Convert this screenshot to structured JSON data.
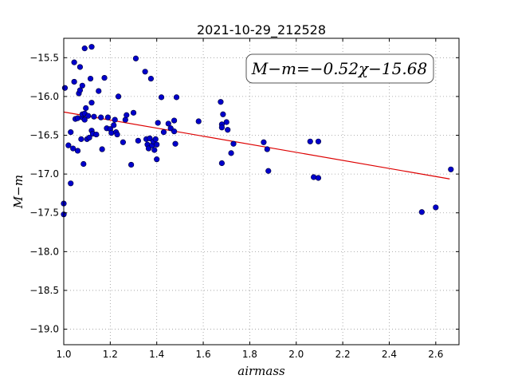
{
  "chart_data": {
    "type": "scatter",
    "title": "2021-10-29_212528",
    "xlabel": "airmass",
    "ylabel": "M−m",
    "xlim": [
      1.0,
      2.7
    ],
    "ylim": [
      -19.2,
      -15.25
    ],
    "x_ticks": [
      1.0,
      1.2,
      1.4,
      1.6,
      1.8,
      2.0,
      2.2,
      2.4,
      2.6
    ],
    "x_tick_labels": [
      "1.0",
      "1.2",
      "1.4",
      "1.6",
      "1.8",
      "2.0",
      "2.2",
      "2.4",
      "2.6"
    ],
    "y_ticks": [
      -15.5,
      -16.0,
      -16.5,
      -17.0,
      -17.5,
      -18.0,
      -18.5,
      -19.0
    ],
    "y_tick_labels": [
      "−15.5",
      "−16.0",
      "−16.5",
      "−17.0",
      "−17.5",
      "−18.0",
      "−18.5",
      "−19.0"
    ],
    "grid": true,
    "annotation": "M−m=−0.52χ−15.68",
    "fit": {
      "slope": -0.52,
      "intercept": -15.68,
      "x_range": [
        1.0,
        2.66
      ]
    },
    "colors": {
      "points": "#0000cc",
      "fit_line": "#dd0000",
      "grid": "#999999"
    },
    "points": [
      [
        1.005,
        -15.89
      ],
      [
        1.0,
        -17.38
      ],
      [
        1.0,
        -17.52
      ],
      [
        1.02,
        -16.63
      ],
      [
        1.03,
        -16.46
      ],
      [
        1.03,
        -17.12
      ],
      [
        1.04,
        -16.67
      ],
      [
        1.045,
        -15.56
      ],
      [
        1.045,
        -15.81
      ],
      [
        1.05,
        -16.29
      ],
      [
        1.06,
        -16.28
      ],
      [
        1.06,
        -16.7
      ],
      [
        1.065,
        -15.96
      ],
      [
        1.07,
        -15.62
      ],
      [
        1.07,
        -15.92
      ],
      [
        1.075,
        -16.55
      ],
      [
        1.08,
        -16.27
      ],
      [
        1.08,
        -16.23
      ],
      [
        1.08,
        -15.86
      ],
      [
        1.085,
        -16.87
      ],
      [
        1.09,
        -16.3
      ],
      [
        1.09,
        -15.38
      ],
      [
        1.09,
        -16.22
      ],
      [
        1.095,
        -16.15
      ],
      [
        1.1,
        -16.55
      ],
      [
        1.105,
        -16.25
      ],
      [
        1.11,
        -16.53
      ],
      [
        1.115,
        -15.77
      ],
      [
        1.12,
        -15.36
      ],
      [
        1.12,
        -16.08
      ],
      [
        1.12,
        -16.44
      ],
      [
        1.125,
        -16.48
      ],
      [
        1.13,
        -16.26
      ],
      [
        1.14,
        -16.49
      ],
      [
        1.15,
        -15.93
      ],
      [
        1.16,
        -16.27
      ],
      [
        1.165,
        -16.68
      ],
      [
        1.175,
        -15.76
      ],
      [
        1.185,
        -16.41
      ],
      [
        1.19,
        -16.27
      ],
      [
        1.2,
        -16.42
      ],
      [
        1.205,
        -16.47
      ],
      [
        1.215,
        -16.37
      ],
      [
        1.22,
        -16.3
      ],
      [
        1.225,
        -16.46
      ],
      [
        1.23,
        -16.49
      ],
      [
        1.235,
        -16.0
      ],
      [
        1.255,
        -16.59
      ],
      [
        1.265,
        -16.3
      ],
      [
        1.27,
        -16.24
      ],
      [
        1.29,
        -16.88
      ],
      [
        1.3,
        -16.21
      ],
      [
        1.31,
        -15.51
      ],
      [
        1.32,
        -16.57
      ],
      [
        1.35,
        -15.68
      ],
      [
        1.355,
        -16.55
      ],
      [
        1.36,
        -16.62
      ],
      [
        1.365,
        -16.67
      ],
      [
        1.37,
        -16.54
      ],
      [
        1.375,
        -15.77
      ],
      [
        1.38,
        -16.63
      ],
      [
        1.385,
        -16.58
      ],
      [
        1.39,
        -16.69
      ],
      [
        1.395,
        -16.55
      ],
      [
        1.4,
        -16.62
      ],
      [
        1.4,
        -16.81
      ],
      [
        1.405,
        -16.34
      ],
      [
        1.42,
        -16.01
      ],
      [
        1.43,
        -16.46
      ],
      [
        1.45,
        -16.35
      ],
      [
        1.46,
        -16.41
      ],
      [
        1.475,
        -16.45
      ],
      [
        1.475,
        -16.31
      ],
      [
        1.48,
        -16.61
      ],
      [
        1.485,
        -16.01
      ],
      [
        1.58,
        -16.32
      ],
      [
        1.675,
        -16.07
      ],
      [
        1.68,
        -16.36
      ],
      [
        1.68,
        -16.4
      ],
      [
        1.68,
        -16.86
      ],
      [
        1.685,
        -16.23
      ],
      [
        1.7,
        -16.33
      ],
      [
        1.705,
        -16.43
      ],
      [
        1.72,
        -16.73
      ],
      [
        1.73,
        -16.61
      ],
      [
        1.86,
        -16.59
      ],
      [
        1.875,
        -16.68
      ],
      [
        1.88,
        -16.96
      ],
      [
        2.06,
        -16.58
      ],
      [
        2.075,
        -17.04
      ],
      [
        2.095,
        -16.58
      ],
      [
        2.095,
        -17.05
      ],
      [
        2.54,
        -17.49
      ],
      [
        2.6,
        -17.43
      ],
      [
        2.665,
        -16.94
      ]
    ]
  }
}
